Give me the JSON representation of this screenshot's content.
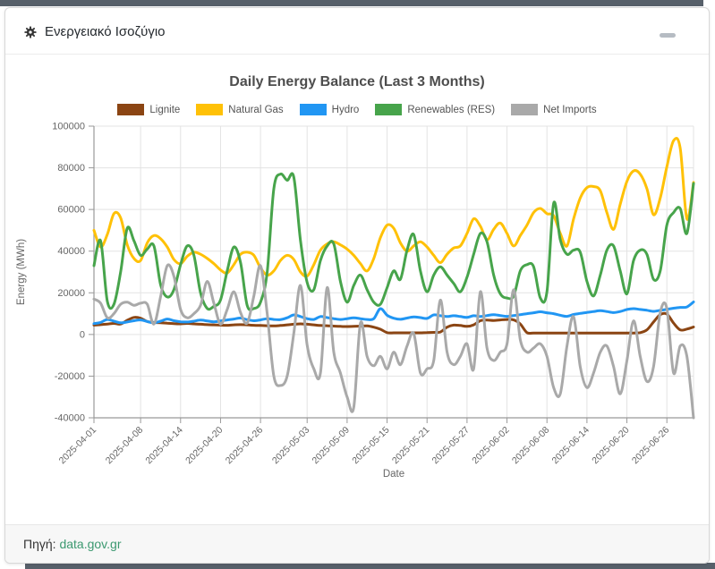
{
  "window": {
    "title": "Ενεργειακό Ισοζύγιο",
    "icon": "gear-icon",
    "minimize": "–"
  },
  "footer": {
    "label": "Πηγή:",
    "link_text": "data.gov.gr",
    "link_color": "#3c9970"
  },
  "colors": {
    "edge_bar": "#57606a",
    "grid": "#e3e3e3",
    "axis": "#999999",
    "tick_text": "#666666",
    "title_text": "#4d4d4d"
  },
  "chart_data": {
    "type": "line",
    "title": "Daily Energy Balance (Last 3 Months)",
    "xlabel": "Date",
    "ylabel": "Energy (MWh)",
    "ylim": [
      -40000,
      100000
    ],
    "y_ticks": [
      100000,
      80000,
      60000,
      40000,
      20000,
      0,
      -20000,
      -40000
    ],
    "grid": true,
    "legend_position": "top",
    "x_start_date": "2025-04-01",
    "num_days": 91,
    "x_tick_labels": [
      "2025-04-01",
      "2025-04-08",
      "2025-04-14",
      "2025-04-20",
      "2025-04-26",
      "2025-05-03",
      "2025-05-09",
      "2025-05-15",
      "2025-05-21",
      "2025-05-27",
      "2025-06-02",
      "2025-06-08",
      "2025-06-14",
      "2025-06-20",
      "2025-06-26"
    ],
    "x_tick_day_indices": [
      0,
      7,
      13,
      19,
      25,
      32,
      38,
      44,
      50,
      56,
      62,
      68,
      74,
      80,
      86
    ],
    "series": [
      {
        "name": "Lignite",
        "color": "#8B4513",
        "values": [
          4500,
          4700,
          5000,
          5300,
          5000,
          6800,
          8200,
          7800,
          6200,
          5800,
          5600,
          5400,
          5200,
          5100,
          5300,
          5100,
          4900,
          4700,
          4600,
          4500,
          4400,
          4600,
          4700,
          4600,
          4400,
          4300,
          4200,
          4100,
          4300,
          4600,
          4900,
          5100,
          4900,
          4600,
          4300,
          4200,
          4000,
          3900,
          3800,
          3900,
          4000,
          4100,
          3500,
          2500,
          900,
          800,
          800,
          800,
          800,
          800,
          900,
          1000,
          1200,
          3500,
          4500,
          4300,
          3900,
          4600,
          6600,
          6900,
          6700,
          7000,
          7200,
          7000,
          5000,
          900,
          700,
          700,
          700,
          700,
          700,
          700,
          700,
          700,
          700,
          700,
          700,
          700,
          700,
          700,
          700,
          700,
          900,
          2200,
          6000,
          9500,
          9800,
          5500,
          2200,
          2600,
          3600
        ]
      },
      {
        "name": "Natural Gas",
        "color": "#FFC107",
        "values": [
          50000,
          42000,
          48000,
          58000,
          56000,
          43000,
          36500,
          35500,
          44000,
          47500,
          46000,
          42000,
          36000,
          34000,
          37500,
          39500,
          38500,
          36500,
          34000,
          31000,
          29500,
          33500,
          38500,
          39500,
          38000,
          32000,
          28500,
          30500,
          35500,
          38000,
          36000,
          30000,
          28000,
          33500,
          40500,
          43500,
          44500,
          43000,
          41000,
          38000,
          34000,
          30500,
          36500,
          46500,
          52500,
          51000,
          44000,
          40000,
          42500,
          44500,
          42000,
          38000,
          34500,
          38500,
          41500,
          42500,
          48500,
          55500,
          52000,
          45500,
          50500,
          53500,
          48500,
          42500,
          47500,
          52500,
          58500,
          60500,
          58000,
          57000,
          48500,
          42500,
          55500,
          65500,
          70500,
          71000,
          69000,
          58500,
          50500,
          62500,
          73500,
          78500,
          77000,
          70000,
          57500,
          65500,
          80500,
          93000,
          89500,
          55500,
          73000
        ]
      },
      {
        "name": "Hydro",
        "color": "#2196F3",
        "values": [
          5200,
          5800,
          7200,
          6400,
          5600,
          6000,
          6600,
          7000,
          6200,
          5600,
          6400,
          7400,
          6600,
          6100,
          6000,
          6400,
          6900,
          6500,
          6100,
          6500,
          7000,
          7400,
          7900,
          7100,
          6600,
          7000,
          7600,
          7200,
          7100,
          8000,
          9400,
          8600,
          7600,
          7200,
          8600,
          8100,
          7600,
          7200,
          7600,
          8000,
          7600,
          7200,
          7600,
          12400,
          9200,
          7800,
          7300,
          7900,
          8400,
          8100,
          7700,
          9400,
          9000,
          8600,
          9000,
          8600,
          8200,
          9000,
          8600,
          9100,
          9500,
          9100,
          8700,
          9100,
          9500,
          10000,
          10400,
          10900,
          10400,
          10000,
          9200,
          8700,
          9600,
          10100,
          10600,
          11000,
          11400,
          11000,
          10500,
          11000,
          12000,
          12400,
          12000,
          11600,
          11100,
          11600,
          12100,
          12600,
          13000,
          13200,
          15600
        ]
      },
      {
        "name": "Renewables (RES)",
        "color": "#47A44B",
        "values": [
          33000,
          45000,
          16000,
          14500,
          30000,
          51000,
          45000,
          38000,
          41000,
          42500,
          24000,
          18000,
          21500,
          33500,
          42500,
          38000,
          20000,
          12500,
          13500,
          16500,
          30500,
          42000,
          34500,
          14000,
          12500,
          15500,
          30000,
          70000,
          77000,
          74000,
          75500,
          45000,
          25000,
          21500,
          35500,
          42500,
          43500,
          25500,
          15500,
          23500,
          28500,
          21500,
          15500,
          14500,
          22500,
          30500,
          26500,
          40500,
          48000,
          30500,
          20500,
          28500,
          32500,
          28500,
          24500,
          20500,
          27500,
          38500,
          48500,
          44500,
          28500,
          19500,
          17500,
          18500,
          30500,
          33500,
          32500,
          17500,
          20500,
          63000,
          45500,
          38500,
          40500,
          39500,
          25500,
          18500,
          28500,
          40500,
          42500,
          30500,
          19500,
          35500,
          40500,
          38500,
          26500,
          30500,
          52500,
          58500,
          60500,
          48500,
          72500
        ]
      },
      {
        "name": "Net Imports",
        "color": "#A9A9A9",
        "values": [
          17000,
          15000,
          8000,
          10000,
          14500,
          15500,
          14000,
          15000,
          14500,
          5000,
          18000,
          33000,
          28000,
          12000,
          8000,
          10000,
          14000,
          25500,
          15000,
          5000,
          12000,
          20500,
          10500,
          5500,
          18500,
          33000,
          10000,
          -20000,
          -24500,
          -20000,
          500,
          23500,
          -5000,
          -16500,
          -18500,
          22500,
          -8500,
          -18500,
          -30000,
          -35000,
          5500,
          -10500,
          -15000,
          -10500,
          -16500,
          -8500,
          -14500,
          -5500,
          500,
          -18500,
          -16500,
          -12500,
          16500,
          -8500,
          -14500,
          -10500,
          -4500,
          -16500,
          20500,
          -6500,
          -12500,
          -8500,
          -4500,
          21500,
          -2500,
          -8500,
          -6500,
          -4500,
          -10500,
          -25500,
          -28500,
          -5500,
          8500,
          -15500,
          -25500,
          -18500,
          -8500,
          -5500,
          -15500,
          -28500,
          -12500,
          6500,
          -10500,
          -22500,
          -15500,
          10500,
          12500,
          -18500,
          -5500,
          -10500,
          -40000
        ]
      }
    ]
  }
}
